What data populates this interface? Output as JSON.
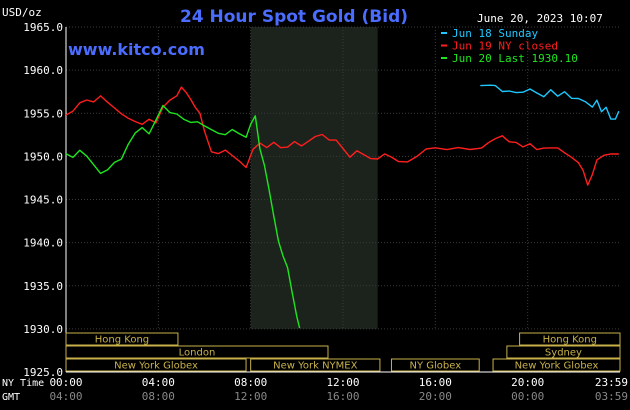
{
  "chart_data": {
    "type": "line",
    "title": "24 Hour Spot Gold (Bid)",
    "source": "www.kitco.com",
    "timestamp": "June 20, 2023 10:07",
    "ylabel": "USD/oz",
    "ylim": [
      1925,
      1965
    ],
    "y_ticks": [
      "1965.0",
      "1960.0",
      "1955.0",
      "1950.0",
      "1945.0",
      "1940.0",
      "1935.0",
      "1930.0",
      "1925.0"
    ],
    "xlim": [
      0,
      24
    ],
    "x_ticks": [
      {
        "x": 0,
        "ny": "00:00",
        "gmt": "04:00"
      },
      {
        "x": 4,
        "ny": "04:00",
        "gmt": "08:00"
      },
      {
        "x": 8,
        "ny": "08:00",
        "gmt": "12:00"
      },
      {
        "x": 12,
        "ny": "12:00",
        "gmt": "16:00"
      },
      {
        "x": 16,
        "ny": "16:00",
        "gmt": "20:00"
      },
      {
        "x": 20,
        "ny": "20:00",
        "gmt": "00:00"
      },
      {
        "x": 24,
        "ny": "23:59",
        "gmt": "03:59"
      }
    ],
    "x_axis_rows": {
      "ny_label": "NY Time",
      "gmt_label": "GMT"
    },
    "highlight_range": [
      8.0,
      13.5
    ],
    "grid": true,
    "legend_position": "top-right",
    "series": [
      {
        "name": "Jun 18 Sunday",
        "color": "#1ec8ff",
        "x": [
          17.95,
          18.4,
          18.6,
          18.9,
          19.2,
          19.5,
          19.8,
          20.1,
          20.4,
          20.7,
          21.0,
          21.3,
          21.6,
          21.9,
          22.2,
          22.5,
          22.8,
          23.0,
          23.2,
          23.4,
          23.6,
          23.8,
          23.95
        ],
        "y": [
          1958.2,
          1958.2,
          1958.3,
          1957.4,
          1957.7,
          1957.3,
          1957.5,
          1957.8,
          1957.3,
          1957.0,
          1957.6,
          1957.1,
          1957.4,
          1956.8,
          1956.7,
          1956.3,
          1955.8,
          1956.4,
          1955.3,
          1955.6,
          1954.4,
          1954.3,
          1955.2
        ]
      },
      {
        "name": "Jun 19 NY closed",
        "color": "#ff1e1e",
        "x": [
          0.0,
          0.3,
          0.6,
          0.9,
          1.2,
          1.5,
          1.8,
          2.1,
          2.4,
          2.7,
          3.0,
          3.3,
          3.6,
          3.9,
          4.2,
          4.5,
          4.8,
          5.0,
          5.2,
          5.4,
          5.6,
          5.8,
          6.0,
          6.3,
          6.6,
          6.9,
          7.2,
          7.5,
          7.8,
          8.1,
          8.4,
          8.7,
          9.0,
          9.3,
          9.6,
          9.9,
          10.2,
          10.5,
          10.8,
          11.1,
          11.4,
          11.7,
          12.0,
          12.3,
          12.6,
          12.9,
          13.2,
          13.5,
          13.8,
          14.1,
          14.4,
          14.8,
          15.2,
          15.6,
          16.0,
          16.5,
          17.0,
          17.5,
          18.0,
          18.3,
          18.6,
          18.9,
          19.2,
          19.5,
          19.8,
          20.1,
          20.4,
          20.7,
          21.0,
          21.3,
          21.6,
          21.9,
          22.2,
          22.4,
          22.6,
          22.8,
          23.0,
          23.3,
          23.6,
          23.95
        ],
        "y": [
          1954.8,
          1955.3,
          1956.2,
          1956.5,
          1956.4,
          1956.9,
          1956.4,
          1955.5,
          1955.0,
          1954.4,
          1954.0,
          1953.8,
          1954.2,
          1954.0,
          1955.6,
          1956.6,
          1957.0,
          1958.0,
          1957.5,
          1956.5,
          1955.8,
          1954.9,
          1953.0,
          1950.5,
          1950.3,
          1950.8,
          1950.0,
          1949.6,
          1948.6,
          1950.9,
          1951.5,
          1951.0,
          1951.7,
          1950.9,
          1951.2,
          1951.6,
          1951.3,
          1951.7,
          1952.3,
          1952.6,
          1951.8,
          1952.0,
          1950.8,
          1950.0,
          1950.6,
          1950.2,
          1949.8,
          1949.6,
          1950.4,
          1949.8,
          1949.5,
          1949.3,
          1950.0,
          1950.9,
          1950.9,
          1950.9,
          1950.9,
          1950.9,
          1950.9,
          1951.6,
          1952.1,
          1952.3,
          1951.8,
          1951.5,
          1951.2,
          1951.4,
          1950.8,
          1951.0,
          1950.9,
          1951.1,
          1950.3,
          1950.0,
          1949.2,
          1948.4,
          1946.7,
          1947.8,
          1949.7,
          1950.0,
          1950.4,
          1950.2
        ]
      },
      {
        "name": "Jun 20 Last 1930.10",
        "color": "#1ee61e",
        "x": [
          0.0,
          0.3,
          0.6,
          0.9,
          1.2,
          1.5,
          1.8,
          2.1,
          2.4,
          2.7,
          3.0,
          3.3,
          3.6,
          3.9,
          4.2,
          4.5,
          4.8,
          5.1,
          5.4,
          5.7,
          6.0,
          6.3,
          6.6,
          6.9,
          7.2,
          7.5,
          7.8,
          8.0,
          8.2,
          8.4,
          8.6,
          8.8,
          9.0,
          9.2,
          9.4,
          9.6,
          9.8,
          10.0,
          10.12
        ],
        "y": [
          1950.3,
          1950.0,
          1950.6,
          1950.1,
          1949.0,
          1948.0,
          1948.5,
          1949.2,
          1949.8,
          1951.3,
          1952.8,
          1953.3,
          1952.6,
          1954.3,
          1955.8,
          1955.2,
          1954.8,
          1954.4,
          1953.9,
          1954.0,
          1953.6,
          1953.0,
          1952.8,
          1952.4,
          1953.2,
          1952.6,
          1952.2,
          1953.8,
          1954.6,
          1951.0,
          1948.8,
          1946.2,
          1943.0,
          1940.2,
          1938.5,
          1937.0,
          1934.3,
          1931.3,
          1930.1
        ]
      }
    ],
    "sessions": [
      {
        "label": "Hong Kong",
        "start": 0.0,
        "end": 4.85,
        "row": 0
      },
      {
        "label": "Hong Kong",
        "start": 19.65,
        "end": 24.0,
        "row": 0
      },
      {
        "label": "London",
        "start": 0.0,
        "end": 11.35,
        "row": 1
      },
      {
        "label": "Sydney",
        "start": 19.1,
        "end": 24.0,
        "row": 1
      },
      {
        "label": "New York Globex",
        "start": 0.0,
        "end": 7.8,
        "row": 2
      },
      {
        "label": "New York NYMEX",
        "start": 8.0,
        "end": 13.6,
        "row": 2
      },
      {
        "label": "NY Globex",
        "start": 14.1,
        "end": 17.9,
        "row": 2
      },
      {
        "label": "New York Globex",
        "start": 18.5,
        "end": 24.0,
        "row": 2
      }
    ]
  }
}
